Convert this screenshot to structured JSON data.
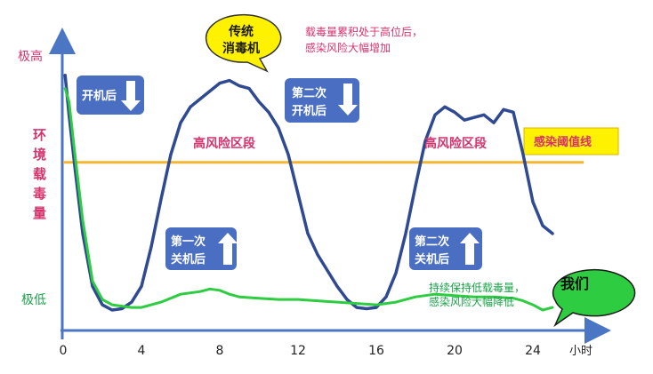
{
  "chart_data": {
    "type": "line",
    "title": "",
    "xlabel": "",
    "x_unit": "小时",
    "ylabel": "环境载毒量",
    "y_top_label": "极高",
    "y_bottom_label": "极低",
    "xlim": [
      0,
      27
    ],
    "ylim": [
      0,
      10
    ],
    "x_ticks": [
      0,
      4,
      8,
      12,
      16,
      20,
      24
    ],
    "threshold": {
      "label": "感染阈值线",
      "value": 5.7,
      "color": "#f2b632"
    },
    "series": [
      {
        "color": "#2f4a93",
        "x": [
          0.1,
          0.3,
          0.6,
          1.0,
          1.5,
          2.0,
          2.5,
          3.0,
          3.5,
          4.0,
          4.5,
          5.0,
          5.5,
          6.0,
          6.5,
          7.0,
          7.5,
          8.0,
          8.5,
          9.0,
          9.5,
          10.0,
          10.5,
          11.0,
          11.5,
          12.0,
          12.5,
          13.0,
          13.5,
          14.0,
          14.5,
          15.0,
          15.5,
          16.0,
          16.5,
          17.0,
          17.5,
          18.0,
          18.5,
          19.0,
          19.5,
          20.0,
          20.5,
          21.0,
          21.5,
          22.0,
          22.5,
          23.0,
          23.5,
          24.0,
          24.5,
          25.0
        ],
        "y": [
          9.0,
          7.5,
          5.5,
          3.0,
          1.0,
          0.3,
          0.1,
          0.15,
          0.4,
          1.0,
          2.5,
          4.3,
          6.0,
          7.2,
          7.8,
          8.1,
          8.4,
          8.7,
          8.8,
          8.6,
          8.5,
          8.0,
          7.6,
          7.0,
          6.0,
          4.5,
          3.0,
          2.2,
          1.6,
          1.0,
          0.5,
          0.2,
          0.15,
          0.2,
          0.6,
          1.5,
          3.0,
          4.8,
          6.5,
          7.5,
          7.8,
          7.6,
          7.3,
          7.4,
          7.5,
          7.2,
          7.7,
          7.6,
          6.0,
          4.2,
          3.3,
          3.0
        ]
      },
      {
        "color": "#2ecc40",
        "x": [
          0.1,
          0.3,
          0.6,
          1.0,
          1.5,
          2.0,
          2.5,
          3.0,
          3.5,
          4.0,
          5.0,
          6.0,
          7.0,
          7.5,
          8.0,
          8.5,
          9.0,
          10.0,
          11.0,
          12.0,
          13.0,
          14.0,
          15.0,
          16.0,
          17.0,
          18.0,
          19.0,
          20.0,
          21.0,
          22.0,
          23.0,
          23.5,
          24.0,
          24.5,
          25.0
        ],
        "y": [
          8.5,
          8.0,
          6.0,
          3.5,
          1.2,
          0.5,
          0.3,
          0.25,
          0.2,
          0.2,
          0.4,
          0.7,
          0.8,
          0.9,
          0.85,
          0.7,
          0.6,
          0.55,
          0.5,
          0.5,
          0.45,
          0.4,
          0.35,
          0.3,
          0.4,
          0.6,
          0.7,
          0.65,
          0.6,
          0.6,
          0.55,
          0.45,
          0.3,
          0.1,
          0.2
        ]
      }
    ],
    "annotations": {
      "zone1": "高风险区段",
      "zone2": "高风险区段",
      "callout_line1": "传统",
      "callout_line2": "消毒机",
      "note_top_line1": "载毒量累积处于高位后，",
      "note_top_line2": "感染风险大幅增加",
      "box_open1_line1": "开机后",
      "box_off1_line1": "第一次",
      "box_off1_line2": "关机后",
      "box_open2_line1": "第二次",
      "box_open2_line2": "开机后",
      "box_off2_line1": "第二次",
      "box_off2_line2": "关机后",
      "note_green_line1": "持续保持低载毒量，",
      "note_green_line2": "感染风险大幅降低",
      "women": "我们"
    }
  }
}
